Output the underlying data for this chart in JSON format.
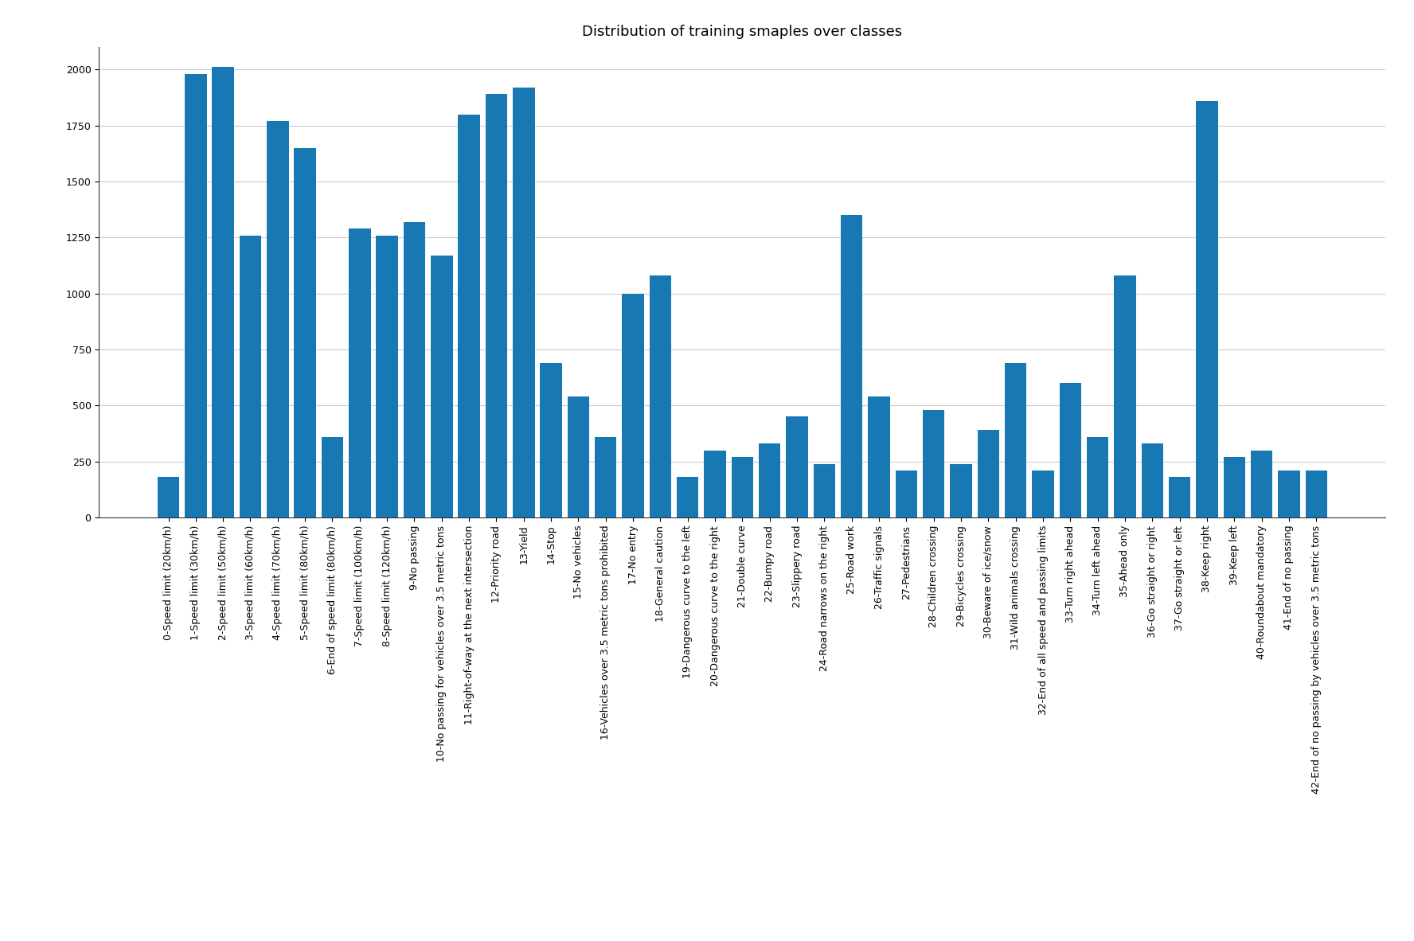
{
  "title": "Distribution of training smaples over classes",
  "bar_color": "#1878b4",
  "categories": [
    "0-Speed limit (20km/h)",
    "1-Speed limit (30km/h)",
    "2-Speed limit (50km/h)",
    "3-Speed limit (60km/h)",
    "4-Speed limit (70km/h)",
    "5-Speed limit (80km/h)",
    "6-End of speed limit (80km/h)",
    "7-Speed limit (100km/h)",
    "8-Speed limit (120km/h)",
    "9-No passing",
    "10-No passing for vehicles over 3.5 metric tons",
    "11-Right-of-way at the next intersection",
    "12-Priority road",
    "13-Yield",
    "14-Stop",
    "15-No vehicles",
    "16-Vehicles over 3.5 metric tons prohibited",
    "17-No entry",
    "18-General caution",
    "19-Dangerous curve to the left",
    "20-Dangerous curve to the right",
    "21-Double curve",
    "22-Bumpy road",
    "23-Slippery road",
    "24-Road narrows on the right",
    "25-Road work",
    "26-Traffic signals",
    "27-Pedestrians",
    "28-Children crossing",
    "29-Bicycles crossing",
    "30-Beware of ice/snow",
    "31-Wild animals crossing",
    "32-End of all speed and passing limits",
    "33-Turn right ahead",
    "34-Turn left ahead",
    "35-Ahead only",
    "36-Go straight or right",
    "37-Go straight or left",
    "38-Keep right",
    "39-Keep left",
    "40-Roundabout mandatory",
    "41-End of no passing",
    "42-End of no passing by vehicles over 3.5 metric tons"
  ],
  "values": [
    180,
    1980,
    2010,
    1260,
    1770,
    1650,
    360,
    1290,
    1260,
    1320,
    1170,
    1800,
    1890,
    1920,
    690,
    540,
    360,
    1000,
    1080,
    180,
    300,
    270,
    330,
    450,
    240,
    1350,
    540,
    210,
    480,
    240,
    390,
    690,
    210,
    600,
    360,
    1080,
    330,
    180,
    1860,
    270,
    300,
    210,
    210
  ],
  "ylim": [
    0,
    2100
  ],
  "yticks": [
    0,
    250,
    500,
    750,
    1000,
    1250,
    1500,
    1750,
    2000
  ],
  "grid_color": "#cccccc",
  "background_color": "#ffffff",
  "title_fontsize": 13,
  "tick_fontsize": 9,
  "bar_width": 0.8
}
